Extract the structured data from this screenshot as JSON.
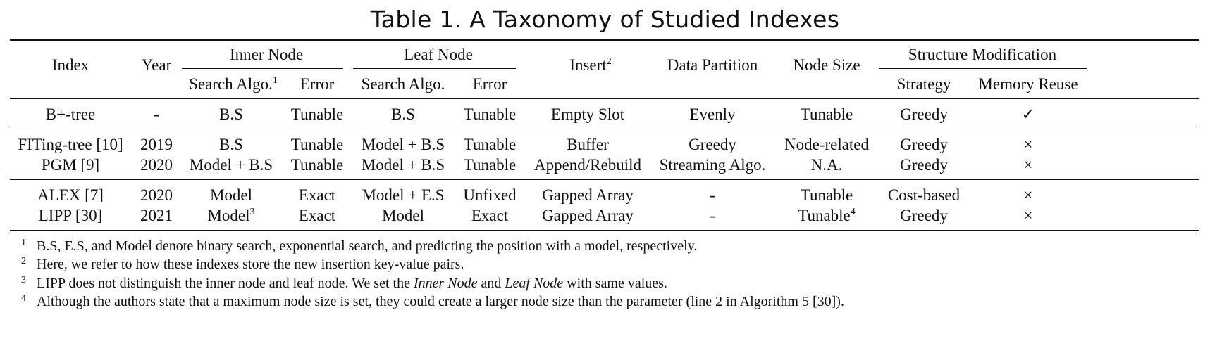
{
  "title": "Table 1.  A Taxonomy of Studied Indexes",
  "headers": {
    "index": "Index",
    "year": "Year",
    "inner_node": "Inner Node",
    "leaf_node": "Leaf Node",
    "insert": "Insert",
    "insert_sup": "2",
    "data_partition": "Data Partition",
    "node_size": "Node Size",
    "structure_modification": "Structure Modification",
    "inner_search": "Search Algo.",
    "inner_search_sup": "1",
    "inner_error": "Error",
    "leaf_search": "Search Algo.",
    "leaf_error": "Error",
    "strategy": "Strategy",
    "memory_reuse": "Memory Reuse"
  },
  "rows": [
    {
      "index": "B+-tree",
      "year": "-",
      "inner_search": "B.S",
      "inner_search_sup": "",
      "inner_error": "Tunable",
      "leaf_search": "B.S",
      "leaf_error": "Tunable",
      "insert": "Empty Slot",
      "data_partition": "Evenly",
      "node_size": "Tunable",
      "node_size_sup": "",
      "strategy": "Greedy",
      "memory_reuse": "✓"
    },
    {
      "index": "FITing-tree [10]",
      "year": "2019",
      "inner_search": "B.S",
      "inner_search_sup": "",
      "inner_error": "Tunable",
      "leaf_search": "Model + B.S",
      "leaf_error": "Tunable",
      "insert": "Buffer",
      "data_partition": "Greedy",
      "node_size": "Node-related",
      "node_size_sup": "",
      "strategy": "Greedy",
      "memory_reuse": "×"
    },
    {
      "index": "PGM [9]",
      "year": "2020",
      "inner_search": "Model + B.S",
      "inner_search_sup": "",
      "inner_error": "Tunable",
      "leaf_search": "Model + B.S",
      "leaf_error": "Tunable",
      "insert": "Append/Rebuild",
      "data_partition": "Streaming Algo.",
      "node_size": "N.A.",
      "node_size_sup": "",
      "strategy": "Greedy",
      "memory_reuse": "×"
    },
    {
      "index": "ALEX [7]",
      "year": "2020",
      "inner_search": "Model",
      "inner_search_sup": "",
      "inner_error": "Exact",
      "leaf_search": "Model + E.S",
      "leaf_error": "Unfixed",
      "insert": "Gapped Array",
      "data_partition": "-",
      "node_size": "Tunable",
      "node_size_sup": "",
      "strategy": "Cost-based",
      "memory_reuse": "×"
    },
    {
      "index": "LIPP [30]",
      "year": "2021",
      "inner_search": "Model",
      "inner_search_sup": "3",
      "inner_error": "Exact",
      "leaf_search": "Model",
      "leaf_error": "Exact",
      "insert": "Gapped Array",
      "data_partition": "-",
      "node_size": "Tunable",
      "node_size_sup": "4",
      "strategy": "Greedy",
      "memory_reuse": "×"
    }
  ],
  "footnotes": [
    {
      "mark": "1",
      "text": "B.S, E.S, and Model denote binary search, exponential search, and predicting the position with a model, respectively."
    },
    {
      "mark": "2",
      "text": "Here, we refer to how these indexes store the new insertion key-value pairs."
    },
    {
      "mark": "3",
      "text_a": "LIPP does not distinguish the inner node and leaf node. We set the ",
      "italic_a": "Inner Node",
      "text_b": " and ",
      "italic_b": "Leaf Node",
      "text_c": " with same values."
    },
    {
      "mark": "4",
      "text": "Although the authors state that a maximum node size is set, they could create a larger node size than the parameter (line 2 in Algorithm 5 [30])."
    }
  ]
}
